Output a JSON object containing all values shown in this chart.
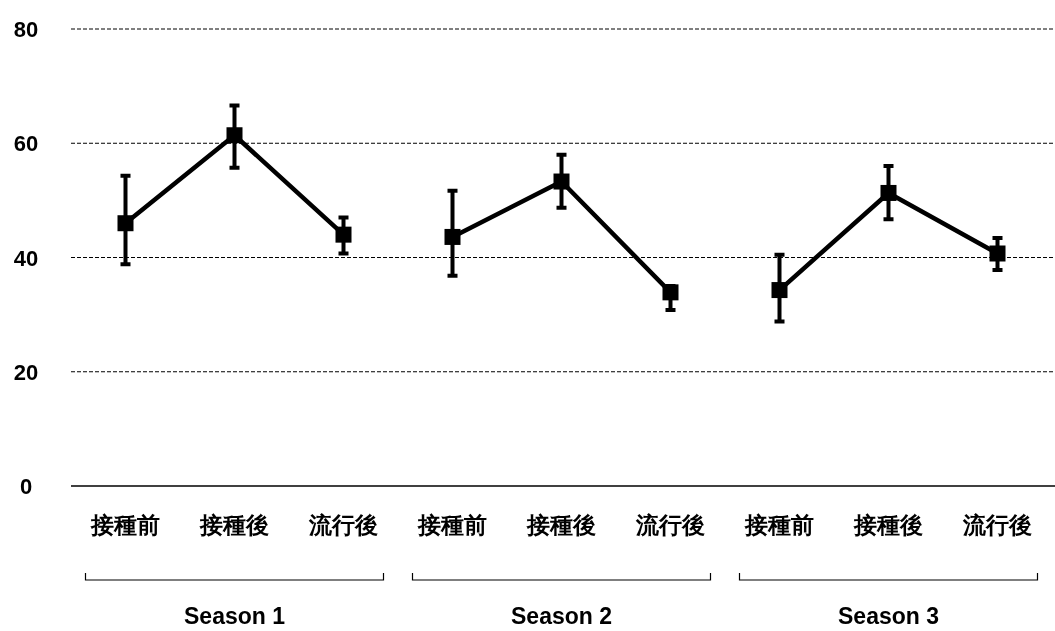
{
  "chart_data": {
    "type": "line",
    "categories": [
      "接種前",
      "接種後",
      "流行後",
      "接種前",
      "接種後",
      "流行後",
      "接種前",
      "接種後",
      "流行後"
    ],
    "series": [
      {
        "color": "#000000",
        "values": [
          46.0,
          61.4,
          44.0,
          null,
          null,
          null,
          null,
          null,
          null
        ],
        "errors": [
          [
            38.8,
            54.3
          ],
          [
            55.7,
            66.6
          ],
          [
            40.7,
            47.0
          ],
          null,
          null,
          null,
          null,
          null,
          null
        ]
      },
      {
        "color": "#000000",
        "values": [
          null,
          null,
          null,
          43.6,
          53.3,
          33.9,
          null,
          null,
          null
        ],
        "errors": [
          null,
          null,
          null,
          [
            36.8,
            51.7
          ],
          [
            48.7,
            58.0
          ],
          [
            30.8,
            35.0
          ],
          null,
          null,
          null
        ]
      },
      {
        "color": "#000000",
        "values": [
          null,
          null,
          null,
          null,
          null,
          null,
          34.3,
          51.3,
          40.7
        ],
        "errors": [
          null,
          null,
          null,
          null,
          null,
          null,
          [
            28.8,
            40.5
          ],
          [
            46.7,
            56.0
          ],
          [
            37.8,
            43.4
          ]
        ]
      }
    ],
    "ylim": [
      0,
      80
    ],
    "yticks": [
      0,
      20,
      40,
      60,
      80
    ],
    "grid": "y",
    "marker": "square",
    "line_style": "solid",
    "annotations": [
      "Season 1",
      "Season 2",
      "Season 3"
    ]
  }
}
